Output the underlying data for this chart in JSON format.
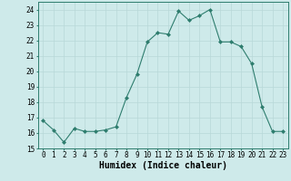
{
  "x": [
    0,
    1,
    2,
    3,
    4,
    5,
    6,
    7,
    8,
    9,
    10,
    11,
    12,
    13,
    14,
    15,
    16,
    17,
    18,
    19,
    20,
    21,
    22,
    23
  ],
  "y": [
    16.8,
    16.2,
    15.4,
    16.3,
    16.1,
    16.1,
    16.2,
    16.4,
    18.3,
    19.8,
    21.9,
    22.5,
    22.4,
    23.9,
    23.3,
    23.6,
    24.0,
    21.9,
    21.9,
    21.6,
    20.5,
    17.7,
    16.1,
    16.1
  ],
  "line_color": "#2e7d6e",
  "marker": "D",
  "marker_size": 2.0,
  "background_color": "#ceeaea",
  "grid_color": "#b8d8d8",
  "xlabel": "Humidex (Indice chaleur)",
  "xlim": [
    -0.5,
    23.5
  ],
  "ylim": [
    15,
    24.5
  ],
  "yticks": [
    15,
    16,
    17,
    18,
    19,
    20,
    21,
    22,
    23,
    24
  ],
  "xticks": [
    0,
    1,
    2,
    3,
    4,
    5,
    6,
    7,
    8,
    9,
    10,
    11,
    12,
    13,
    14,
    15,
    16,
    17,
    18,
    19,
    20,
    21,
    22,
    23
  ],
  "xtick_labels": [
    "0",
    "1",
    "2",
    "3",
    "4",
    "5",
    "6",
    "7",
    "8",
    "9",
    "10",
    "11",
    "12",
    "13",
    "14",
    "15",
    "16",
    "17",
    "18",
    "19",
    "20",
    "21",
    "22",
    "23"
  ],
  "tick_fontsize": 5.5,
  "xlabel_fontsize": 7.0
}
